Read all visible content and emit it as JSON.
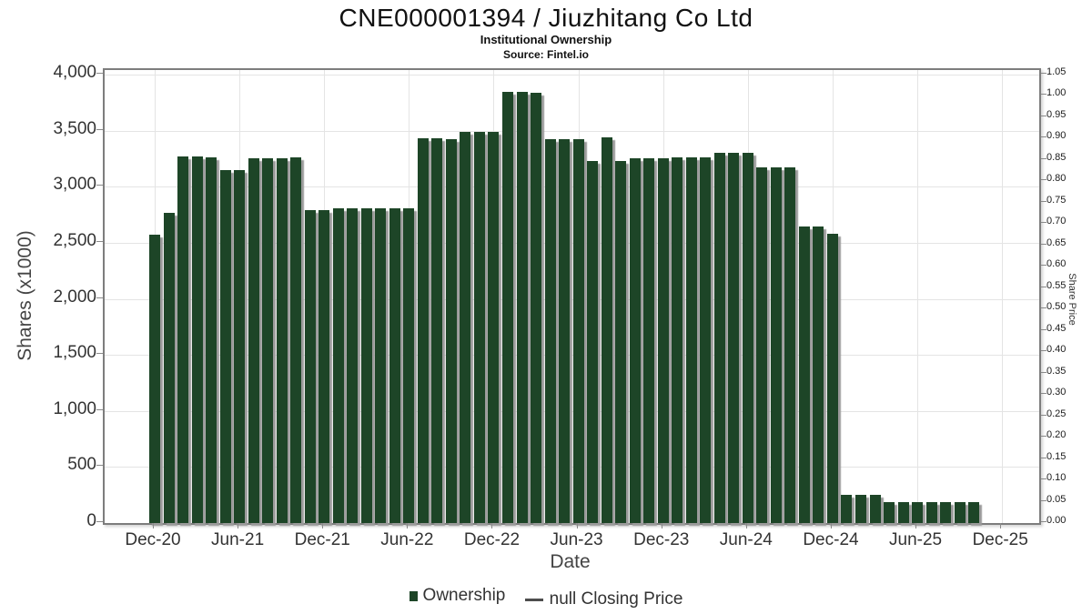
{
  "title": "CNE000001394 / Jiuzhitang Co Ltd",
  "subtitle": "Institutional Ownership",
  "source": "Source: Fintel.io",
  "legend": {
    "ownership_label": "Ownership",
    "price_label": "null Closing Price"
  },
  "colors": {
    "bar": "#1d4527",
    "bar_shadow": "#9a9a9a",
    "grid": "#e4e4e4",
    "plot_border": "#7d7d7d",
    "text": "#333333"
  },
  "chart_data": {
    "type": "bar",
    "title": "CNE000001394 / Jiuzhitang Co Ltd",
    "subtitle": "Institutional Ownership",
    "source": "Source: Fintel.io",
    "xlabel": "Date",
    "ylabel_left": "Shares (x1000)",
    "ylabel_right": "Share Price",
    "bar_color": "#1d4527",
    "grid": true,
    "legend_position": "bottom",
    "left_axis": {
      "min": 0,
      "max": 4000,
      "step": 500,
      "tick_labels": [
        "4,000",
        "3,500",
        "3,000",
        "2,500",
        "2,000",
        "1,500",
        "1,000",
        "500",
        "0"
      ]
    },
    "right_axis": {
      "min": 0.0,
      "max": 1.05,
      "step": 0.05,
      "tick_labels": [
        "1.05",
        "1.00",
        "0.95",
        "0.90",
        "0.85",
        "0.80",
        "0.75",
        "0.70",
        "0.65",
        "0.60",
        "0.55",
        "0.50",
        "0.45",
        "0.40",
        "0.35",
        "0.30",
        "0.25",
        "0.20",
        "0.15",
        "0.10",
        "0.05",
        "0.00"
      ]
    },
    "x_tick_labels": [
      "Dec-20",
      "Jun-21",
      "Dec-21",
      "Jun-22",
      "Dec-22",
      "Jun-23",
      "Dec-23",
      "Jun-24",
      "Dec-24",
      "Jun-25",
      "Dec-25"
    ],
    "categories": [
      "Dec-20",
      "Jan-21",
      "Feb-21",
      "Mar-21",
      "Apr-21",
      "May-21",
      "Jun-21",
      "Jul-21",
      "Aug-21",
      "Sep-21",
      "Oct-21",
      "Nov-21",
      "Dec-21",
      "Jan-22",
      "Feb-22",
      "Mar-22",
      "Apr-22",
      "May-22",
      "Jun-22",
      "Jul-22",
      "Aug-22",
      "Sep-22",
      "Oct-22",
      "Nov-22",
      "Dec-22",
      "Jan-23",
      "Feb-23",
      "Mar-23",
      "Apr-23",
      "May-23",
      "Jun-23",
      "Jul-23",
      "Aug-23",
      "Sep-23",
      "Oct-23",
      "Nov-23",
      "Dec-23",
      "Jan-24",
      "Feb-24",
      "Mar-24",
      "Apr-24",
      "May-24",
      "Jun-24",
      "Jul-24",
      "Aug-24",
      "Sep-24",
      "Oct-24",
      "Nov-24",
      "Dec-24",
      "Jan-25",
      "Feb-25",
      "Mar-25",
      "Apr-25",
      "May-25",
      "Jun-25",
      "Jul-25",
      "Aug-25",
      "Sep-25",
      "Oct-25"
    ],
    "series": [
      {
        "name": "Ownership",
        "values": [
          2570,
          2770,
          3270,
          3270,
          3265,
          3150,
          3150,
          3250,
          3250,
          3250,
          3265,
          2790,
          2790,
          2810,
          2810,
          2810,
          2805,
          2805,
          2805,
          3430,
          3430,
          3425,
          3490,
          3485,
          3485,
          3845,
          3845,
          3840,
          3425,
          3425,
          3425,
          3230,
          3440,
          3230,
          3250,
          3250,
          3255,
          3265,
          3265,
          3265,
          3300,
          3300,
          3300,
          3170,
          3170,
          3170,
          2645,
          2645,
          2580,
          255,
          255,
          255,
          185,
          185,
          185,
          185,
          185,
          185,
          185
        ]
      },
      {
        "name": "null Closing Price",
        "values": []
      }
    ]
  }
}
